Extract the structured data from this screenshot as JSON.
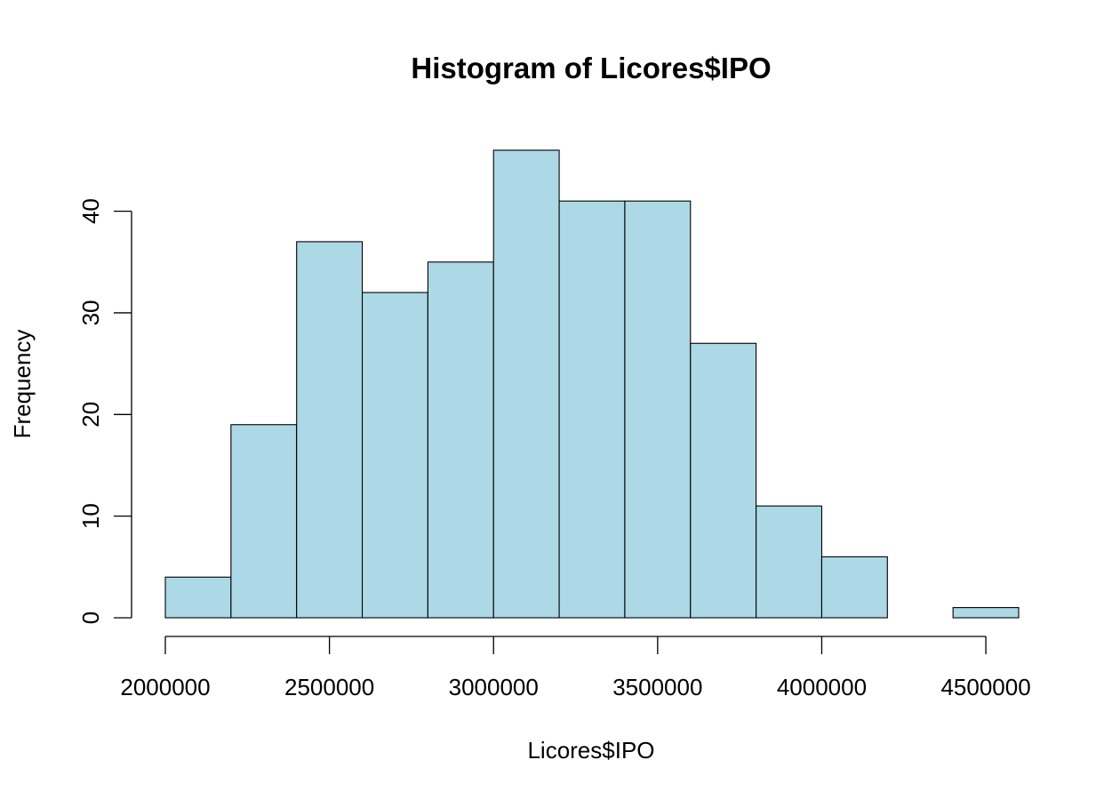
{
  "chart_data": {
    "type": "bar",
    "subtype": "histogram",
    "title": "Histogram of Licores$IPO",
    "xlabel": "Licores$IPO",
    "ylabel": "Frequency",
    "bin_width": 200000,
    "bins": [
      {
        "start": 2000000,
        "end": 2200000,
        "count": 4
      },
      {
        "start": 2200000,
        "end": 2400000,
        "count": 19
      },
      {
        "start": 2400000,
        "end": 2600000,
        "count": 37
      },
      {
        "start": 2600000,
        "end": 2800000,
        "count": 32
      },
      {
        "start": 2800000,
        "end": 3000000,
        "count": 35
      },
      {
        "start": 3000000,
        "end": 3200000,
        "count": 46
      },
      {
        "start": 3200000,
        "end": 3400000,
        "count": 41
      },
      {
        "start": 3400000,
        "end": 3600000,
        "count": 41
      },
      {
        "start": 3600000,
        "end": 3800000,
        "count": 27
      },
      {
        "start": 3800000,
        "end": 4000000,
        "count": 11
      },
      {
        "start": 4000000,
        "end": 4200000,
        "count": 6
      },
      {
        "start": 4200000,
        "end": 4400000,
        "count": 0
      },
      {
        "start": 4400000,
        "end": 4600000,
        "count": 1
      }
    ],
    "xticks": [
      "2000000",
      "2500000",
      "3000000",
      "3500000",
      "4000000",
      "4500000"
    ],
    "yticks": [
      "0",
      "10",
      "20",
      "30",
      "40"
    ],
    "xlim": [
      2000000,
      4600000
    ],
    "ylim": [
      0,
      46
    ],
    "fill_color": "#add8e6",
    "edge_color": "#000000",
    "grid": false,
    "legend": "none"
  }
}
